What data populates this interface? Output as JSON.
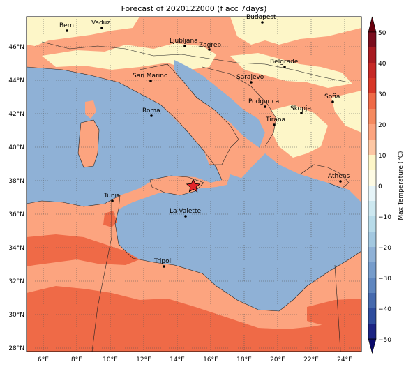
{
  "title": "Forecast of 2020122000 (f acc 7days)",
  "colors": {
    "sea": "#8fb1d6",
    "band_10_20": "#fdf6c8",
    "band_20_30": "#fca47f",
    "band_30_40": "#ef6a47",
    "border": "#222222",
    "star": "#e4252a"
  },
  "lon_ticks": [
    "6°E",
    "8°E",
    "10°E",
    "12°E",
    "14°E",
    "16°E",
    "18°E",
    "20°E",
    "22°E",
    "24°E"
  ],
  "lat_ticks": [
    "28°N",
    "30°N",
    "32°N",
    "34°N",
    "36°N",
    "38°N",
    "40°N",
    "42°N",
    "44°N",
    "46°N"
  ],
  "cities": [
    {
      "name": "Bern"
    },
    {
      "name": "Vaduz"
    },
    {
      "name": "Budapest"
    },
    {
      "name": "Ljubljana"
    },
    {
      "name": "Zagreb"
    },
    {
      "name": "Belgrade"
    },
    {
      "name": "San Marino"
    },
    {
      "name": "Sarajevo"
    },
    {
      "name": "Sofia"
    },
    {
      "name": "Podgorica"
    },
    {
      "name": "Skopje"
    },
    {
      "name": "Roma"
    },
    {
      "name": "Tirana"
    },
    {
      "name": "Athens"
    },
    {
      "name": "Tunis"
    },
    {
      "name": "La Valette"
    },
    {
      "name": "Tripoli"
    }
  ],
  "event_marker": {
    "icon": "star-marker-icon"
  },
  "colorbar": {
    "label": "Max Temperature (°C)",
    "ticks": [
      "50",
      "40",
      "30",
      "20",
      "10",
      "0",
      "−10",
      "−20",
      "−30",
      "−40",
      "−50"
    ],
    "colors": [
      "#7a0c1d",
      "#a81a21",
      "#d73627",
      "#ef6a47",
      "#fca47f",
      "#fdf6c8",
      "#e6f4f8",
      "#b8dbe9",
      "#8fb1d6",
      "#5f86bf",
      "#2e4c9d",
      "#1b2383"
    ]
  }
}
